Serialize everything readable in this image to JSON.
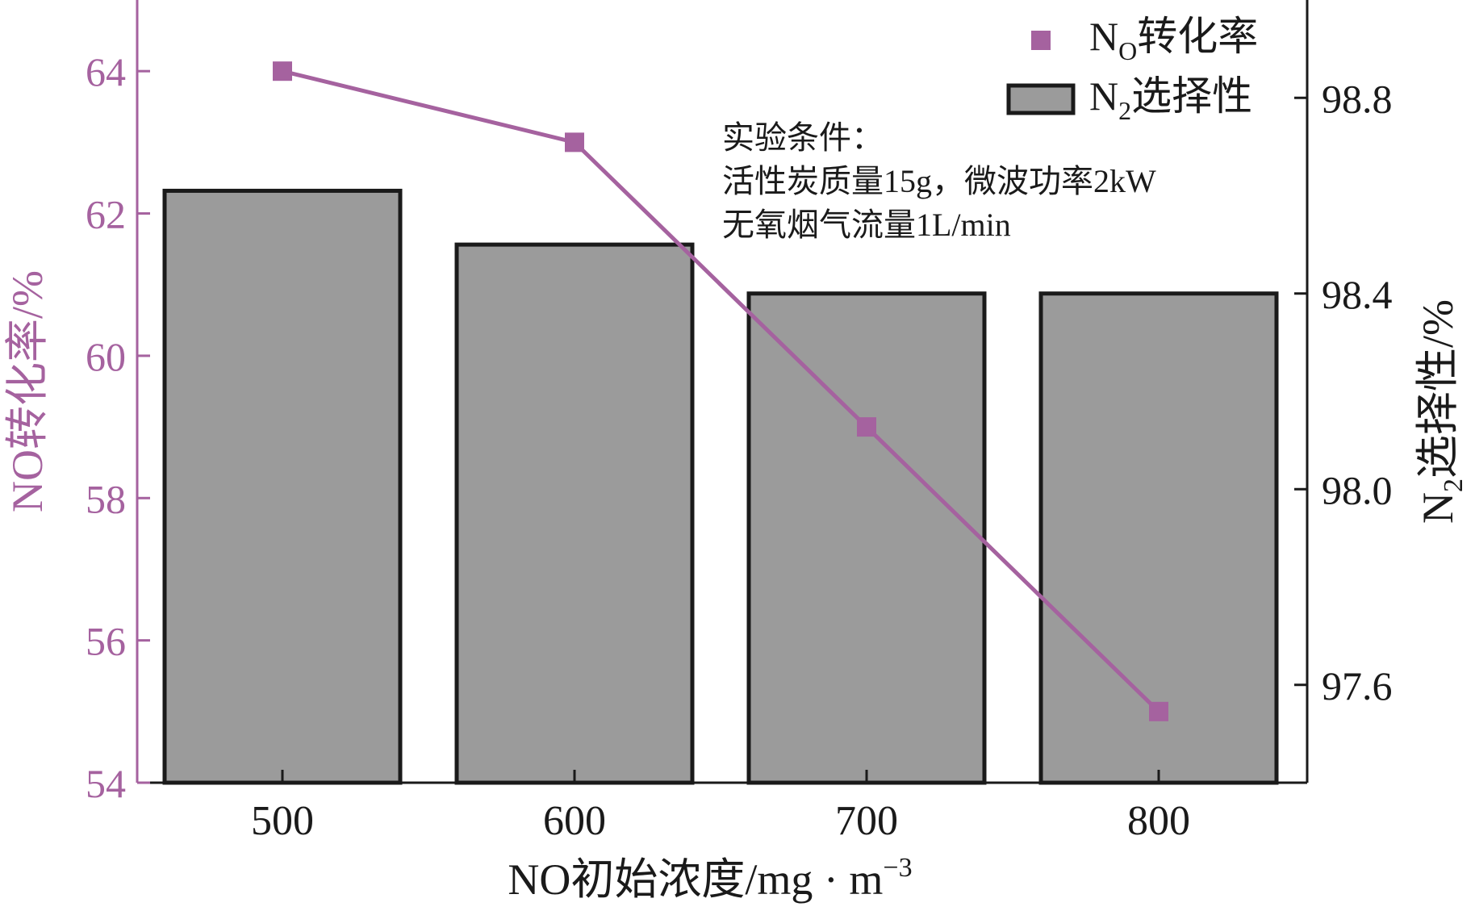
{
  "chart_data": {
    "type": "bar",
    "categories": [
      "500",
      "600",
      "700",
      "800"
    ],
    "xlabel": "NO初始浓度/mg · m",
    "xlabel_sup": "−3",
    "left_axis": {
      "label": "NO转化率/%",
      "ylim": [
        54,
        65
      ],
      "ticks": [
        54,
        56,
        58,
        60,
        62,
        64
      ],
      "tick_labels": [
        "54",
        "56",
        "58",
        "60",
        "62",
        "64"
      ]
    },
    "right_axis": {
      "label_main": "N",
      "label_sub": "2",
      "label_rest": "选择性/%",
      "ylim": [
        97.4,
        99.0
      ],
      "ticks": [
        97.6,
        98.0,
        98.4,
        98.8
      ],
      "tick_labels": [
        "97.6",
        "98.0",
        "98.4",
        "98.8"
      ]
    },
    "series": [
      {
        "name": "N₂选择性",
        "kind": "bar",
        "axis": "right",
        "values": [
          98.61,
          98.5,
          98.4,
          98.4
        ]
      },
      {
        "name": "NO转化率",
        "kind": "line",
        "axis": "left",
        "values": [
          64.0,
          63.0,
          59.0,
          55.0
        ]
      }
    ],
    "legend": {
      "placement": "top-right",
      "entries": [
        {
          "main": "N",
          "sub": "O",
          "rest": "转化率",
          "kind": "marker"
        },
        {
          "main": "N",
          "sub": "2",
          "rest": "选择性",
          "kind": "bar"
        }
      ]
    },
    "annotation": {
      "lines": [
        "实验条件：",
        "活性炭质量15g，微波功率2kW",
        "无氧烟气流量1L/min"
      ]
    },
    "colors": {
      "line": "#A5629F",
      "bar_fill": "#9B9B9B",
      "bar_stroke": "#1A1A1A",
      "left_axis": "#A5629F",
      "axis": "#1A1A1A",
      "text": "#1A1A1A"
    },
    "grid": false
  }
}
